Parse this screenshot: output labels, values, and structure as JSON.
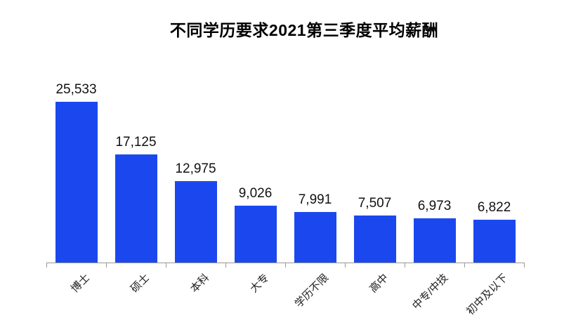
{
  "chart_data": {
    "type": "bar",
    "title": "不同学历要求2021第三季度平均薪酬",
    "categories": [
      "博士",
      "硕士",
      "本科",
      "大专",
      "学历不限",
      "高中",
      "中专/中技",
      "初中及以下"
    ],
    "values": [
      25533,
      17125,
      12975,
      9026,
      7991,
      7507,
      6973,
      6822
    ],
    "value_labels": [
      "25,533",
      "17,125",
      "12,975",
      "9,026",
      "7,991",
      "7,507",
      "6,973",
      "6,822"
    ],
    "xlabel": "",
    "ylabel": "",
    "ylim": [
      0,
      26000
    ],
    "grid": false,
    "legend": false,
    "bar_color": "#1b48ee",
    "axis_color": "#999999",
    "title_color": "#000000",
    "value_label_color": "#111111",
    "tick_label_color": "#222222"
  }
}
